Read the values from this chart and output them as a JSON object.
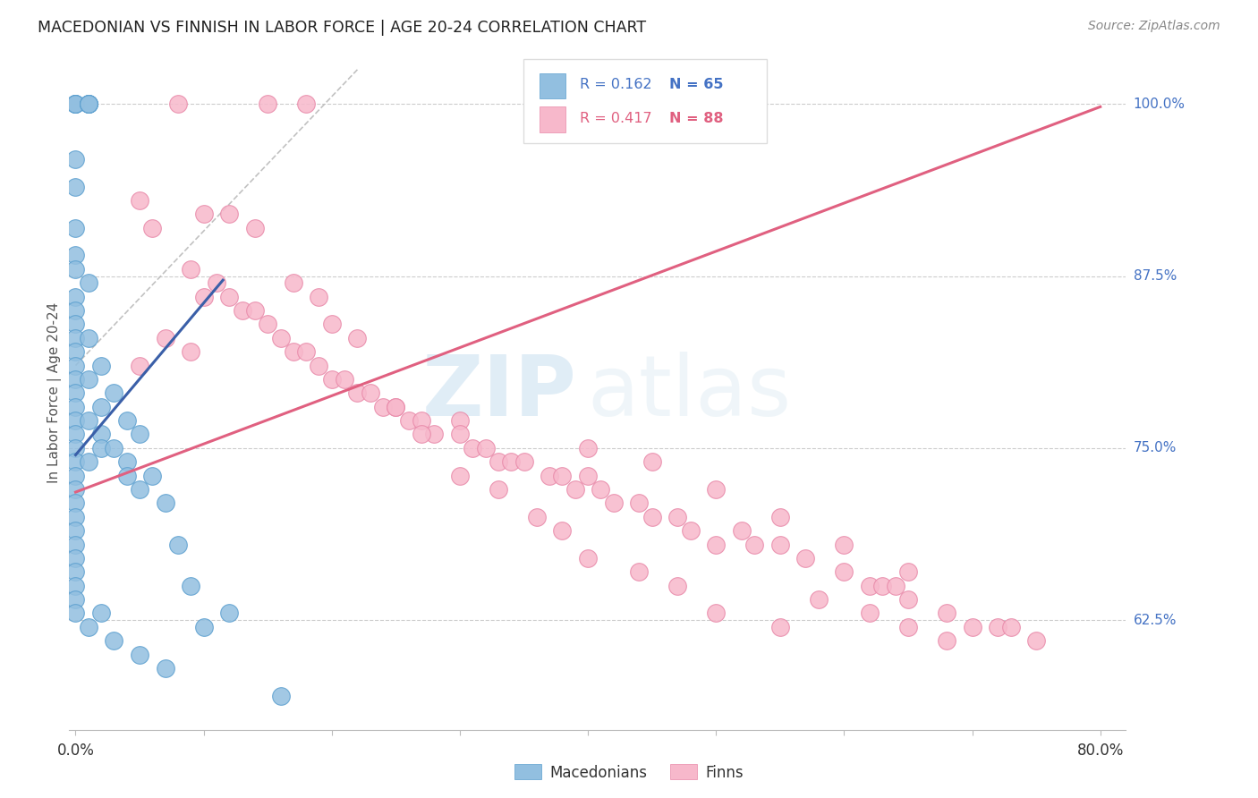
{
  "title": "MACEDONIAN VS FINNISH IN LABOR FORCE | AGE 20-24 CORRELATION CHART",
  "source": "Source: ZipAtlas.com",
  "ylabel": "In Labor Force | Age 20-24",
  "ytick_labels": [
    "100.0%",
    "87.5%",
    "75.0%",
    "62.5%"
  ],
  "ytick_values": [
    1.0,
    0.875,
    0.75,
    0.625
  ],
  "xlim": [
    -0.005,
    0.82
  ],
  "ylim": [
    0.545,
    1.035
  ],
  "macedonian_color": "#92bfe0",
  "macedonian_edge": "#5b9fcf",
  "finnish_color": "#f7b8cb",
  "finnish_edge": "#e888a8",
  "macedonian_R": 0.162,
  "macedonian_N": 65,
  "finnish_R": 0.417,
  "finnish_N": 88,
  "legend_R1_text": "R = 0.162",
  "legend_N1_text": "N = 65",
  "legend_R2_text": "R = 0.417",
  "legend_N2_text": "N = 88",
  "watermark_zip": "ZIP",
  "watermark_atlas": "atlas",
  "finn_line_x0": 0.0,
  "finn_line_y0": 0.718,
  "finn_line_x1": 0.8,
  "finn_line_y1": 0.998,
  "mac_line_x0": 0.0,
  "mac_line_y0": 0.745,
  "mac_line_x1": 0.115,
  "mac_line_y1": 0.872,
  "ref_line_x0": 0.0,
  "ref_line_y0": 0.81,
  "ref_line_x1": 0.22,
  "ref_line_y1": 1.025,
  "mac_dots_x": [
    0.0,
    0.0,
    0.0,
    0.0,
    0.01,
    0.01,
    0.01,
    0.01,
    0.0,
    0.0,
    0.0,
    0.0,
    0.0,
    0.01,
    0.0,
    0.0,
    0.0,
    0.0,
    0.0,
    0.0,
    0.0,
    0.0,
    0.0,
    0.0,
    0.0,
    0.01,
    0.01,
    0.02,
    0.02,
    0.02,
    0.03,
    0.04,
    0.04,
    0.05,
    0.06,
    0.07,
    0.02,
    0.03,
    0.04,
    0.05,
    0.08,
    0.09,
    0.12,
    0.0,
    0.0,
    0.0,
    0.0,
    0.0,
    0.0,
    0.0,
    0.0,
    0.01,
    0.01,
    0.0,
    0.0,
    0.0,
    0.0,
    0.0,
    0.01,
    0.02,
    0.03,
    0.05,
    0.07,
    0.1,
    0.16
  ],
  "mac_dots_y": [
    1.0,
    1.0,
    1.0,
    1.0,
    1.0,
    1.0,
    1.0,
    1.0,
    0.96,
    0.94,
    0.91,
    0.89,
    0.88,
    0.87,
    0.86,
    0.85,
    0.84,
    0.83,
    0.82,
    0.81,
    0.8,
    0.79,
    0.78,
    0.77,
    0.76,
    0.83,
    0.8,
    0.81,
    0.78,
    0.76,
    0.79,
    0.77,
    0.74,
    0.76,
    0.73,
    0.71,
    0.75,
    0.75,
    0.73,
    0.72,
    0.68,
    0.65,
    0.63,
    0.75,
    0.74,
    0.73,
    0.72,
    0.71,
    0.7,
    0.69,
    0.68,
    0.77,
    0.74,
    0.67,
    0.66,
    0.65,
    0.64,
    0.63,
    0.62,
    0.63,
    0.61,
    0.6,
    0.59,
    0.62,
    0.57
  ],
  "finn_dots_x": [
    0.05,
    0.06,
    0.08,
    0.09,
    0.1,
    0.11,
    0.12,
    0.13,
    0.14,
    0.15,
    0.16,
    0.17,
    0.18,
    0.19,
    0.2,
    0.21,
    0.22,
    0.23,
    0.24,
    0.25,
    0.26,
    0.27,
    0.28,
    0.3,
    0.3,
    0.31,
    0.32,
    0.33,
    0.34,
    0.35,
    0.37,
    0.38,
    0.39,
    0.4,
    0.41,
    0.42,
    0.44,
    0.45,
    0.47,
    0.48,
    0.5,
    0.52,
    0.53,
    0.55,
    0.57,
    0.6,
    0.62,
    0.63,
    0.64,
    0.65,
    0.68,
    0.7,
    0.72,
    0.73,
    0.75,
    0.15,
    0.18,
    0.05,
    0.07,
    0.09,
    0.1,
    0.12,
    0.14,
    0.17,
    0.19,
    0.2,
    0.22,
    0.25,
    0.27,
    0.3,
    0.33,
    0.36,
    0.38,
    0.4,
    0.44,
    0.47,
    0.5,
    0.55,
    0.58,
    0.62,
    0.65,
    0.68,
    0.4,
    0.45,
    0.5,
    0.55,
    0.6,
    0.65
  ],
  "finn_dots_y": [
    0.93,
    0.91,
    1.0,
    0.88,
    0.86,
    0.87,
    0.86,
    0.85,
    0.85,
    0.84,
    0.83,
    0.82,
    0.82,
    0.81,
    0.8,
    0.8,
    0.79,
    0.79,
    0.78,
    0.78,
    0.77,
    0.77,
    0.76,
    0.77,
    0.76,
    0.75,
    0.75,
    0.74,
    0.74,
    0.74,
    0.73,
    0.73,
    0.72,
    0.73,
    0.72,
    0.71,
    0.71,
    0.7,
    0.7,
    0.69,
    0.68,
    0.69,
    0.68,
    0.68,
    0.67,
    0.66,
    0.65,
    0.65,
    0.65,
    0.64,
    0.63,
    0.62,
    0.62,
    0.62,
    0.61,
    1.0,
    1.0,
    0.81,
    0.83,
    0.82,
    0.92,
    0.92,
    0.91,
    0.87,
    0.86,
    0.84,
    0.83,
    0.78,
    0.76,
    0.73,
    0.72,
    0.7,
    0.69,
    0.67,
    0.66,
    0.65,
    0.63,
    0.62,
    0.64,
    0.63,
    0.62,
    0.61,
    0.75,
    0.74,
    0.72,
    0.7,
    0.68,
    0.66
  ]
}
